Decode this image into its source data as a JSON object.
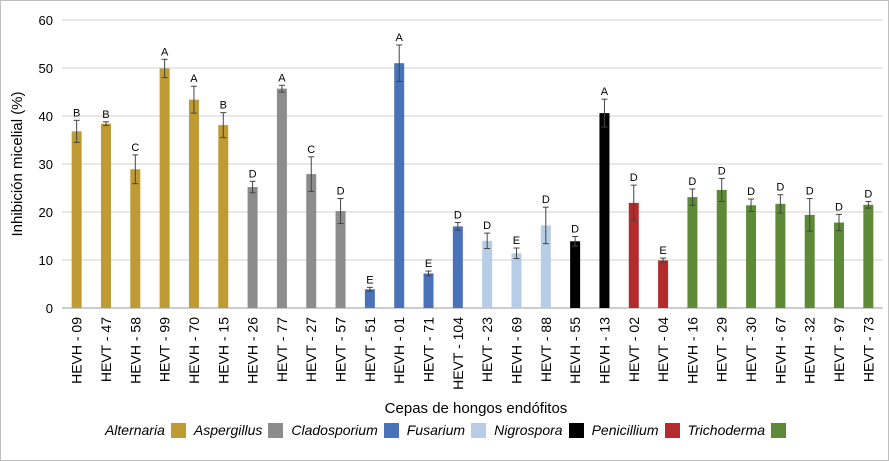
{
  "chart_data": {
    "type": "bar",
    "title": "",
    "xlabel": "Cepas de hongos endófitos",
    "ylabel": "Inhibición micelial (%)",
    "ylim": [
      0,
      60
    ],
    "yticks": [
      "0",
      "10",
      "20",
      "30",
      "40",
      "50",
      "60"
    ],
    "grid": true,
    "categories": [
      "HEVH - 09",
      "HEVT - 47",
      "HEVH - 58",
      "HEVT - 99",
      "HEVH - 70",
      "HEVH - 15",
      "HEVH - 26",
      "HEVT - 77",
      "HEVT - 27",
      "HEVT - 57",
      "HEVT - 51",
      "HEVH - 01",
      "HEVT - 71",
      "HEVT - 104",
      "HEVT - 23",
      "HEVH - 69",
      "HEVT - 88",
      "HEVH - 55",
      "HEVH - 13",
      "HEVT - 02",
      "HEVT - 04",
      "HEVH - 16",
      "HEVT - 29",
      "HEVT - 30",
      "HEVH - 67",
      "HEVH - 32",
      "HEVT - 97",
      "HEVT - 73"
    ],
    "values": [
      36.8,
      38.4,
      28.9,
      49.9,
      43.4,
      38.1,
      25.2,
      45.7,
      27.9,
      20.2,
      3.9,
      51.0,
      7.2,
      17.0,
      14.0,
      11.4,
      17.2,
      13.9,
      40.6,
      21.9,
      9.9,
      23.1,
      24.6,
      21.4,
      21.7,
      19.4,
      17.8,
      21.5
    ],
    "errors": [
      2.3,
      0.4,
      3.0,
      1.9,
      2.8,
      2.6,
      1.2,
      0.7,
      3.6,
      2.6,
      0.4,
      3.8,
      0.5,
      0.8,
      1.6,
      1.1,
      3.8,
      1.0,
      2.9,
      3.7,
      0.5,
      1.7,
      2.4,
      1.3,
      1.9,
      3.4,
      1.7,
      0.7
    ],
    "letters": [
      "B",
      "B",
      "C",
      "A",
      "A",
      "B",
      "D",
      "A",
      "C",
      "D",
      "E",
      "A",
      "E",
      "D",
      "D",
      "E",
      "D",
      "D",
      "A",
      "D",
      "E",
      "D",
      "D",
      "D",
      "D",
      "D",
      "D",
      "D"
    ],
    "genus_index": [
      0,
      0,
      0,
      0,
      0,
      0,
      1,
      1,
      1,
      1,
      2,
      2,
      2,
      2,
      3,
      3,
      3,
      4,
      4,
      5,
      5,
      6,
      6,
      6,
      6,
      6,
      6,
      6
    ],
    "legend": [
      {
        "name": "Alternaria",
        "color": "#BE9B33"
      },
      {
        "name": "Aspergillus",
        "color": "#8C8C8C"
      },
      {
        "name": "Cladosporium",
        "color": "#4A72B8"
      },
      {
        "name": "Fusarium",
        "color": "#B7CCE6"
      },
      {
        "name": "Nigrospora",
        "color": "#000000"
      },
      {
        "name": "Penicillium",
        "color": "#B52A2A"
      },
      {
        "name": "Trichoderma",
        "color": "#5E8A38"
      }
    ]
  }
}
